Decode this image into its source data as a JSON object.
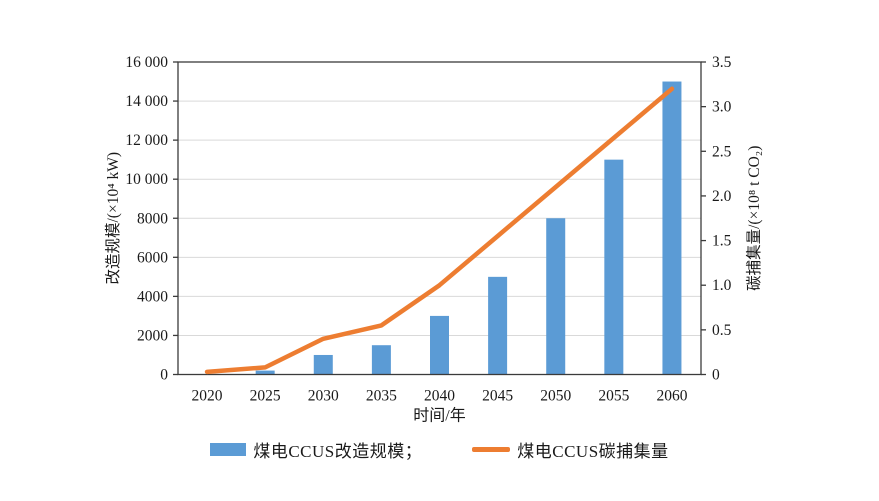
{
  "chart_data": {
    "type": "combo-bar-line",
    "title": "",
    "categories": [
      "2020",
      "2025",
      "2030",
      "2035",
      "2040",
      "2045",
      "2050",
      "2055",
      "2060"
    ],
    "series": [
      {
        "name": "煤电CCUS改造规模",
        "type": "bar",
        "axis": "left",
        "color": "#5B9BD5",
        "values": [
          0,
          200,
          1000,
          1500,
          3000,
          5000,
          8000,
          11000,
          15000
        ]
      },
      {
        "name": "煤电CCUS碳捕集量",
        "type": "line",
        "axis": "right",
        "color": "#ED7D31",
        "values": [
          0.03,
          0.08,
          0.4,
          0.55,
          1.0,
          1.55,
          2.1,
          2.65,
          3.2
        ]
      }
    ],
    "axes": {
      "x": {
        "label": "时间/年"
      },
      "left": {
        "label": "改造规模/(×10⁴ kW)",
        "min": 0,
        "max": 16000,
        "step": 2000,
        "tick_labels": [
          "0",
          "2000",
          "4000",
          "6000",
          "8000",
          "10 000",
          "12 000",
          "14 000",
          "16 000"
        ]
      },
      "right": {
        "label": "碳捕集量/(×10⁸ t CO₂)",
        "min": 0,
        "max": 3.5,
        "step": 0.5,
        "tick_labels": [
          "0",
          "0.5",
          "1.0",
          "1.5",
          "2.0",
          "2.5",
          "3.0",
          "3.5"
        ]
      }
    },
    "grid": true,
    "legend": {
      "position": "bottom",
      "items": [
        {
          "label": "煤电CCUS改造规模；",
          "swatch": "bar",
          "color": "#5B9BD5"
        },
        {
          "label": "煤电CCUS碳捕集量",
          "swatch": "line",
          "color": "#ED7D31"
        }
      ]
    },
    "colors": {
      "bar": "#5B9BD5",
      "line": "#ED7D31",
      "grid": "#D9D9D9",
      "frame": "#3b3b3b",
      "text": "#1a1a1a",
      "background": "#FFFFFF"
    }
  }
}
